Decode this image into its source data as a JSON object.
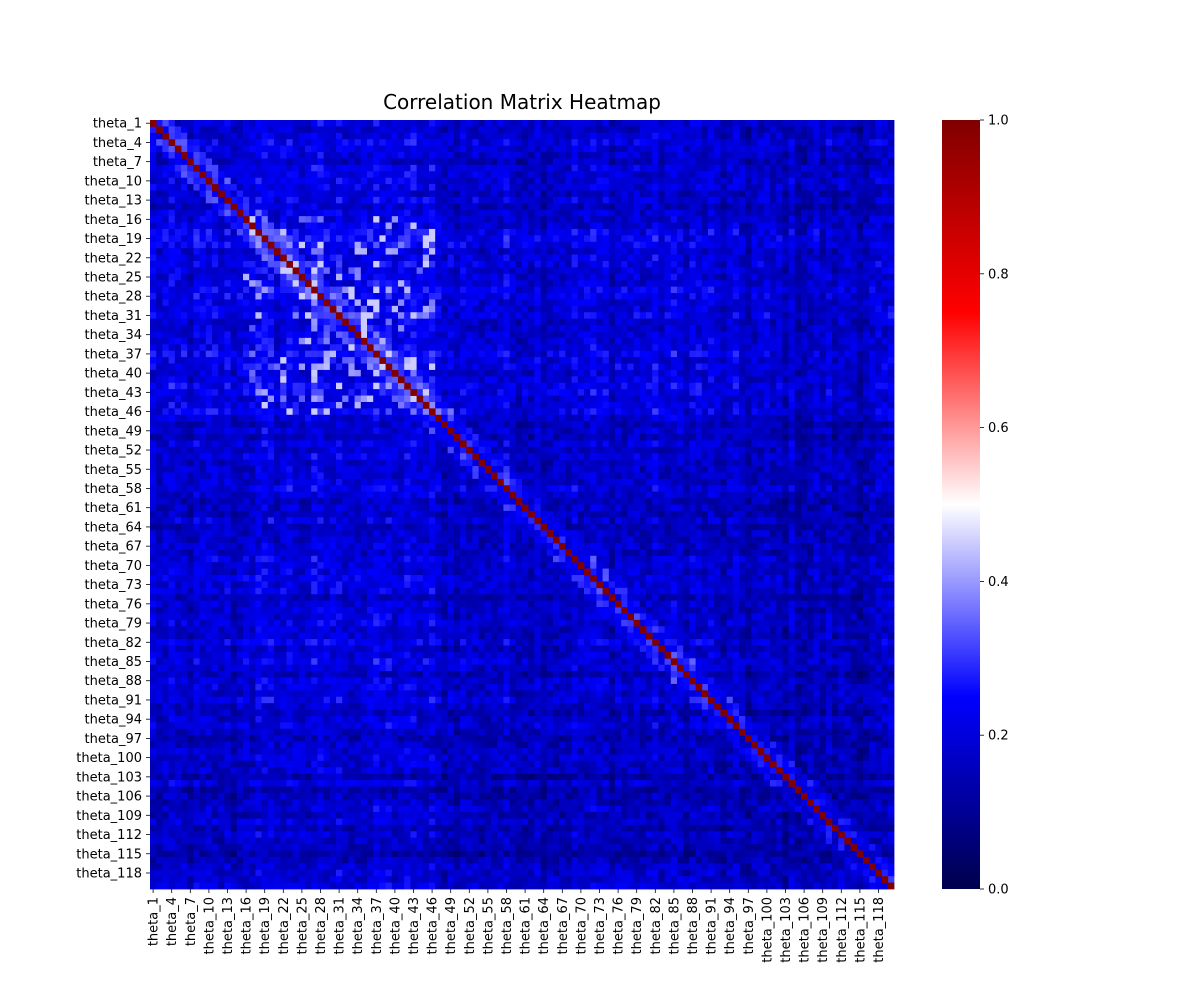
{
  "chart_data": {
    "type": "heatmap",
    "title": "Correlation Matrix Heatmap",
    "variables_count": 120,
    "variable_prefix": "theta_",
    "x_tick_labels": [
      "theta_1",
      "theta_4",
      "theta_7",
      "theta_10",
      "theta_13",
      "theta_16",
      "theta_19",
      "theta_22",
      "theta_25",
      "theta_28",
      "theta_31",
      "theta_34",
      "theta_37",
      "theta_40",
      "theta_43",
      "theta_46",
      "theta_49",
      "theta_52",
      "theta_55",
      "theta_58",
      "theta_61",
      "theta_64",
      "theta_67",
      "theta_70",
      "theta_73",
      "theta_76",
      "theta_79",
      "theta_82",
      "theta_85",
      "theta_88",
      "theta_91",
      "theta_94",
      "theta_97",
      "theta_100",
      "theta_103",
      "theta_106",
      "theta_109",
      "theta_112",
      "theta_115",
      "theta_118"
    ],
    "y_tick_labels": [
      "theta_1",
      "theta_4",
      "theta_7",
      "theta_10",
      "theta_13",
      "theta_16",
      "theta_19",
      "theta_22",
      "theta_25",
      "theta_28",
      "theta_31",
      "theta_34",
      "theta_37",
      "theta_40",
      "theta_43",
      "theta_46",
      "theta_49",
      "theta_52",
      "theta_55",
      "theta_58",
      "theta_61",
      "theta_64",
      "theta_67",
      "theta_70",
      "theta_73",
      "theta_76",
      "theta_79",
      "theta_82",
      "theta_85",
      "theta_88",
      "theta_91",
      "theta_94",
      "theta_97",
      "theta_100",
      "theta_103",
      "theta_106",
      "theta_109",
      "theta_112",
      "theta_115",
      "theta_118"
    ],
    "diagonal_value": 1.0,
    "value_range": [
      0.0,
      1.0
    ],
    "typical_off_diagonal_range": [
      0.0,
      0.45
    ],
    "colormap": "seismic",
    "colormap_stops": [
      "#00004c",
      "#0000ff",
      "#ffffff",
      "#ff0000",
      "#800000"
    ],
    "colorbar": {
      "ticks": [
        0.0,
        0.2,
        0.4,
        0.6,
        0.8,
        1.0
      ],
      "tick_labels": [
        "0.0",
        "0.2",
        "0.4",
        "0.6",
        "0.8",
        "1.0"
      ]
    },
    "grid": false
  }
}
